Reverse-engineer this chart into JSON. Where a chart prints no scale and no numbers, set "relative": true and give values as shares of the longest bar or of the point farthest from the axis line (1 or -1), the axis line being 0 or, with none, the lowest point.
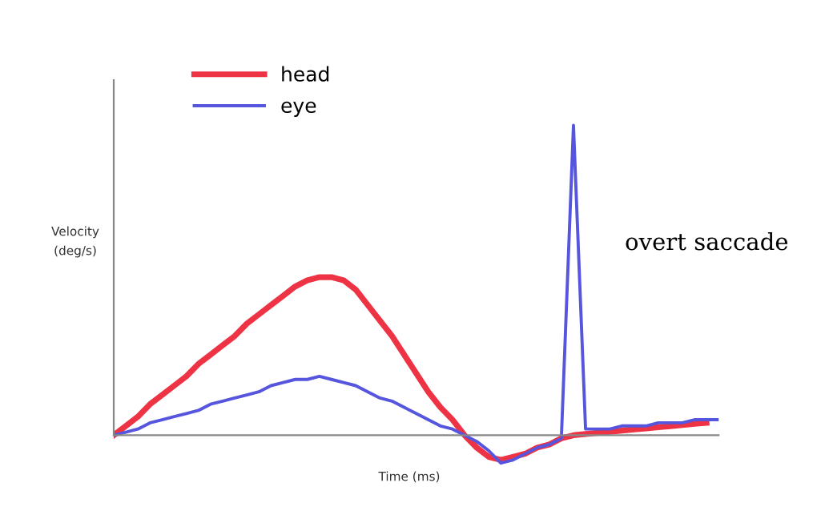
{
  "chart_data": {
    "type": "line",
    "relative": true,
    "xlabel": "Time (ms)",
    "ylabel": "Velocity\n(deg/s)",
    "annotations": [
      "overt saccade"
    ],
    "legend": "top left",
    "categories": [
      null,
      null,
      null,
      null,
      null,
      null,
      null,
      null,
      null,
      null,
      null,
      null,
      null,
      null,
      null,
      null,
      null,
      null,
      null,
      null,
      null,
      null,
      null,
      null,
      null,
      null,
      null,
      null,
      null,
      null,
      null,
      null,
      null,
      null,
      null,
      null,
      null,
      null,
      null,
      null,
      null,
      null,
      null,
      null,
      null,
      null,
      null,
      null,
      null,
      null,
      null
    ],
    "series": [
      {
        "name": "head",
        "color": "#ee3344",
        "values": [
          0,
          0.03,
          0.06,
          0.1,
          0.13,
          0.16,
          0.19,
          0.23,
          0.26,
          0.29,
          0.32,
          0.36,
          0.39,
          0.42,
          0.45,
          0.48,
          0.5,
          0.51,
          0.51,
          0.5,
          0.47,
          0.42,
          0.37,
          0.32,
          0.26,
          0.2,
          0.14,
          0.09,
          0.05,
          0,
          -0.04,
          -0.07,
          -0.08,
          -0.07,
          -0.06,
          -0.04,
          -0.03,
          -0.01,
          0,
          0.004,
          0.008,
          0.011,
          0.015,
          0.019,
          0.022,
          0.026,
          0.029,
          0.033,
          0.037,
          0.04,
          null
        ]
      },
      {
        "name": "eye",
        "color": "#5555dd",
        "values": [
          0,
          0.01,
          0.02,
          0.04,
          0.05,
          0.06,
          0.07,
          0.08,
          0.1,
          0.11,
          0.12,
          0.13,
          0.14,
          0.16,
          0.17,
          0.18,
          0.18,
          0.19,
          0.18,
          0.17,
          0.16,
          0.14,
          0.12,
          0.11,
          0.09,
          0.07,
          0.05,
          0.03,
          0.02,
          0,
          -0.02,
          -0.05,
          -0.09,
          -0.08,
          -0.06,
          -0.04,
          -0.03,
          -0.01,
          1,
          0.02,
          0.02,
          0.02,
          0.03,
          0.03,
          0.03,
          0.04,
          0.04,
          0.04,
          0.05,
          0.05,
          0.05
        ]
      }
    ]
  }
}
